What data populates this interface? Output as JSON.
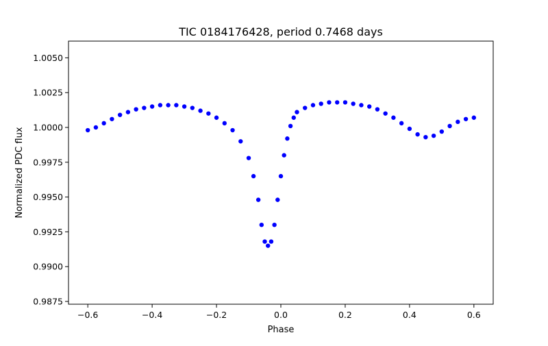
{
  "chart_data": {
    "type": "scatter",
    "title": "TIC 0184176428, period 0.7468 days",
    "xlabel": "Phase",
    "ylabel": "Normalized PDC flux",
    "xlim": [
      -0.66,
      0.66
    ],
    "ylim": [
      0.9873,
      1.0062
    ],
    "xticks": [
      -0.6,
      -0.4,
      -0.2,
      0.0,
      0.2,
      0.4,
      0.6
    ],
    "xtick_labels": [
      "−0.6",
      "−0.4",
      "−0.2",
      "0.0",
      "0.2",
      "0.4",
      "0.6"
    ],
    "yticks": [
      0.9875,
      0.99,
      0.9925,
      0.995,
      0.9975,
      1.0,
      1.0025,
      1.005
    ],
    "ytick_labels": [
      "0.9875",
      "0.9900",
      "0.9925",
      "0.9950",
      "0.9975",
      "1.0000",
      "1.0025",
      "1.0050"
    ],
    "grid": false,
    "marker_color": "#0000ff",
    "series": [
      {
        "x": [
          -0.6,
          -0.575,
          -0.55,
          -0.525,
          -0.5,
          -0.475,
          -0.45,
          -0.425,
          -0.4,
          -0.375,
          -0.35,
          -0.325,
          -0.3,
          -0.275,
          -0.25,
          -0.225,
          -0.2,
          -0.175,
          -0.15,
          -0.125,
          -0.1,
          -0.085,
          -0.07,
          -0.06,
          -0.05,
          -0.04,
          -0.03,
          -0.02,
          -0.01,
          0.0,
          0.01,
          0.02,
          0.03,
          0.04,
          0.05,
          0.075,
          0.1,
          0.125,
          0.15,
          0.175,
          0.2,
          0.225,
          0.25,
          0.275,
          0.3,
          0.325,
          0.35,
          0.375,
          0.4,
          0.425,
          0.45,
          0.475,
          0.5,
          0.525,
          0.55,
          0.575,
          0.6
        ],
        "y": [
          0.9998,
          1.0,
          1.0003,
          1.0006,
          1.0009,
          1.0011,
          1.0013,
          1.0014,
          1.0015,
          1.0016,
          1.0016,
          1.0016,
          1.0015,
          1.0014,
          1.0012,
          1.001,
          1.0007,
          1.0003,
          0.9998,
          0.999,
          0.9978,
          0.9965,
          0.9948,
          0.993,
          0.9918,
          0.9915,
          0.9918,
          0.993,
          0.9948,
          0.9965,
          0.998,
          0.9992,
          1.0001,
          1.0007,
          1.0011,
          1.0014,
          1.0016,
          1.0017,
          1.0018,
          1.0018,
          1.0018,
          1.0017,
          1.0016,
          1.0015,
          1.0013,
          1.001,
          1.0007,
          1.0003,
          0.9999,
          0.9995,
          0.9993,
          0.9994,
          0.9997,
          1.0001,
          1.0004,
          1.0006,
          1.0007
        ]
      }
    ]
  }
}
